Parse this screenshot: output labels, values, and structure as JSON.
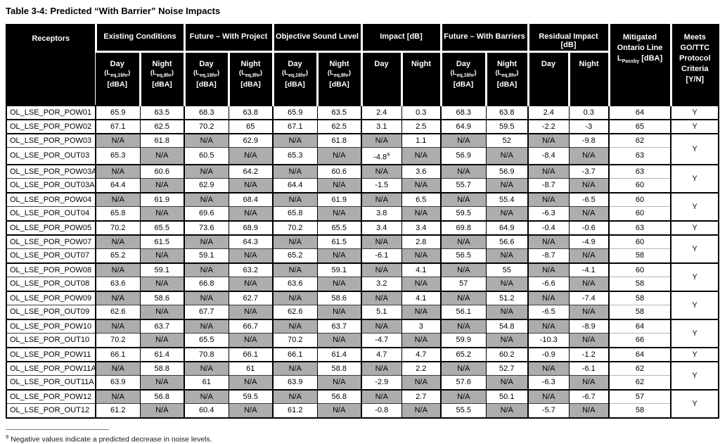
{
  "title": "Table 3-4: Predicted “With Barrier” Noise Impacts",
  "colors": {
    "header_bg": "#000000",
    "header_text": "#ffffff",
    "na_cell_bg": "#adadad",
    "border": "#000000"
  },
  "table": {
    "receptors_header": "Receptors",
    "column_groups": [
      {
        "label": "Existing Conditions",
        "sub": "leq"
      },
      {
        "label": "Future – With Project",
        "sub": "leq"
      },
      {
        "label": "Objective Sound Level",
        "sub": "leq"
      },
      {
        "label": "Impact [dB]",
        "sub": "plain"
      },
      {
        "label": "Future – With Barriers",
        "sub": "leq"
      },
      {
        "label": "Residual Impact [dB]",
        "sub": "plain"
      }
    ],
    "sub_labels": {
      "day": "Day",
      "night": "Night",
      "l_prefix": "(L",
      "day_sub": "eq,16hr",
      "night_sub": "eq,8hr",
      "close": ")",
      "unit": "[dBA]"
    },
    "mitigated_header": {
      "line1": "Mitigated",
      "line2": "Ontario Line",
      "l_prefix": "L",
      "l_sub": "Passby",
      "unit": "[dBA]"
    },
    "meets_header": {
      "lines": [
        "Meets",
        "GO/TTC",
        "Protocol",
        "Criteria",
        "[Y/N]"
      ]
    },
    "rows": [
      {
        "receptor": "OL_LSE_POR_POW01",
        "cells": [
          "65.9",
          "63.5",
          "68.3",
          "63.8",
          "65.9",
          "63.5",
          "2.4",
          "0.3",
          "68.3",
          "63.8",
          "2.4",
          "0.3",
          "64"
        ],
        "meets": "Y",
        "span": 1
      },
      {
        "receptor": "OL_LSE_POR_POW02",
        "cells": [
          "67.1",
          "62.5",
          "70.2",
          "65",
          "67.1",
          "62.5",
          "3.1",
          "2.5",
          "64.9",
          "59.5",
          "-2.2",
          "-3",
          "65"
        ],
        "meets": "Y",
        "span": 1
      },
      {
        "receptor": "OL_LSE_POR_POW03",
        "cells": [
          "N/A",
          "61.8",
          "N/A",
          "62.9",
          "N/A",
          "61.8",
          "N/A",
          "1.1",
          "N/A",
          "52",
          "N/A",
          "-9.8",
          "62"
        ],
        "meets": "Y",
        "span": 2
      },
      {
        "receptor": "OL_LSE_POR_OUT03",
        "cells": [
          "65.3",
          "N/A",
          "60.5",
          "N/A",
          "65.3",
          "N/A",
          "-4.8⁹",
          "N/A",
          "56.9",
          "N/A",
          "-8.4",
          "N/A",
          "63"
        ]
      },
      {
        "receptor": "OL_LSE_POR_POW03A",
        "cells": [
          "N/A",
          "60.6",
          "N/A",
          "64.2",
          "N/A",
          "60.6",
          "N/A",
          "3.6",
          "N/A",
          "56.9",
          "N/A",
          "-3.7",
          "63"
        ],
        "meets": "Y",
        "span": 2
      },
      {
        "receptor": "OL_LSE_POR_OUT03A",
        "cells": [
          "64.4",
          "N/A",
          "62.9",
          "N/A",
          "64.4",
          "N/A",
          "-1.5",
          "N/A",
          "55.7",
          "N/A",
          "-8.7",
          "N/A",
          "60"
        ]
      },
      {
        "receptor": "OL_LSE_POR_POW04",
        "cells": [
          "N/A",
          "61.9",
          "N/A",
          "68.4",
          "N/A",
          "61.9",
          "N/A",
          "6.5",
          "N/A",
          "55.4",
          "N/A",
          "-6.5",
          "60"
        ],
        "meets": "Y",
        "span": 2
      },
      {
        "receptor": "OL_LSE_POR_OUT04",
        "cells": [
          "65.8",
          "N/A",
          "69.6",
          "N/A",
          "65.8",
          "N/A",
          "3.8",
          "N/A",
          "59.5",
          "N/A",
          "-6.3",
          "N/A",
          "60"
        ]
      },
      {
        "receptor": "OL_LSE_POR_POW05",
        "cells": [
          "70.2",
          "65.5",
          "73.6",
          "68.9",
          "70.2",
          "65.5",
          "3.4",
          "3.4",
          "69.8",
          "64.9",
          "-0.4",
          "-0.6",
          "63"
        ],
        "meets": "Y",
        "span": 1
      },
      {
        "receptor": "OL_LSE_POR_POW07",
        "cells": [
          "N/A",
          "61.5",
          "N/A",
          "64.3",
          "N/A",
          "61.5",
          "N/A",
          "2.8",
          "N/A",
          "56.6",
          "N/A",
          "-4.9",
          "60"
        ],
        "meets": "Y",
        "span": 2
      },
      {
        "receptor": "OL_LSE_POR_OUT07",
        "cells": [
          "65.2",
          "N/A",
          "59.1",
          "N/A",
          "65.2",
          "N/A",
          "-6.1",
          "N/A",
          "56.5",
          "N/A",
          "-8.7",
          "N/A",
          "58"
        ]
      },
      {
        "receptor": "OL_LSE_POR_POW08",
        "cells": [
          "N/A",
          "59.1",
          "N/A",
          "63.2",
          "N/A",
          "59.1",
          "N/A",
          "4.1",
          "N/A",
          "55",
          "N/A",
          "-4.1",
          "60"
        ],
        "meets": "Y",
        "span": 2
      },
      {
        "receptor": "OL_LSE_POR_OUT08",
        "cells": [
          "63.6",
          "N/A",
          "66.8",
          "N/A",
          "63.6",
          "N/A",
          "3.2",
          "N/A",
          "57",
          "N/A",
          "-6.6",
          "N/A",
          "58"
        ]
      },
      {
        "receptor": "OL_LSE_POR_POW09",
        "cells": [
          "N/A",
          "58.6",
          "N/A",
          "62.7",
          "N/A",
          "58.6",
          "N/A",
          "4.1",
          "N/A",
          "51.2",
          "N/A",
          "-7.4",
          "58"
        ],
        "meets": "Y",
        "span": 2
      },
      {
        "receptor": "OL_LSE_POR_OUT09",
        "cells": [
          "62.6",
          "N/A",
          "67.7",
          "N/A",
          "62.6",
          "N/A",
          "5.1",
          "N/A",
          "56.1",
          "N/A",
          "-6.5",
          "N/A",
          "58"
        ]
      },
      {
        "receptor": "OL_LSE_POR_POW10",
        "cells": [
          "N/A",
          "63.7",
          "N/A",
          "66.7",
          "N/A",
          "63.7",
          "N/A",
          "3",
          "N/A",
          "54.8",
          "N/A",
          "-8.9",
          "64"
        ],
        "meets": "Y",
        "span": 2
      },
      {
        "receptor": "OL_LSE_POR_OUT10",
        "cells": [
          "70.2",
          "N/A",
          "65.5",
          "N/A",
          "70.2",
          "N/A",
          "-4.7",
          "N/A",
          "59.9",
          "N/A",
          "-10.3",
          "N/A",
          "66"
        ]
      },
      {
        "receptor": "OL_LSE_POR_POW11",
        "cells": [
          "66.1",
          "61.4",
          "70.8",
          "66.1",
          "66.1",
          "61.4",
          "4.7",
          "4.7",
          "65.2",
          "60.2",
          "-0.9",
          "-1.2",
          "64"
        ],
        "meets": "Y",
        "span": 1
      },
      {
        "receptor": "OL_LSE_POR_POW11A",
        "cells": [
          "N/A",
          "58.8",
          "N/A",
          "61",
          "N/A",
          "58.8",
          "N/A",
          "2.2",
          "N/A",
          "52.7",
          "N/A",
          "-6.1",
          "62"
        ],
        "meets": "Y",
        "span": 2
      },
      {
        "receptor": "OL_LSE_POR_OUT11A",
        "cells": [
          "63.9",
          "N/A",
          "61",
          "N/A",
          "63.9",
          "N/A",
          "-2.9",
          "N/A",
          "57.6",
          "N/A",
          "-6.3",
          "N/A",
          "62"
        ]
      },
      {
        "receptor": "OL_LSE_POR_POW12",
        "cells": [
          "N/A",
          "56.8",
          "N/A",
          "59.5",
          "N/A",
          "56.8",
          "N/A",
          "2.7",
          "N/A",
          "50.1",
          "N/A",
          "-6.7",
          "57"
        ],
        "meets": "Y",
        "span": 2
      },
      {
        "receptor": "OL_LSE_POR_OUT12",
        "cells": [
          "61.2",
          "N/A",
          "60.4",
          "N/A",
          "61.2",
          "N/A",
          "-0.8",
          "N/A",
          "55.5",
          "N/A",
          "-5.7",
          "N/A",
          "58"
        ]
      }
    ]
  },
  "footnote": {
    "marker": "9",
    "text": "Negative values indicate a predicted decrease in noise levels."
  }
}
